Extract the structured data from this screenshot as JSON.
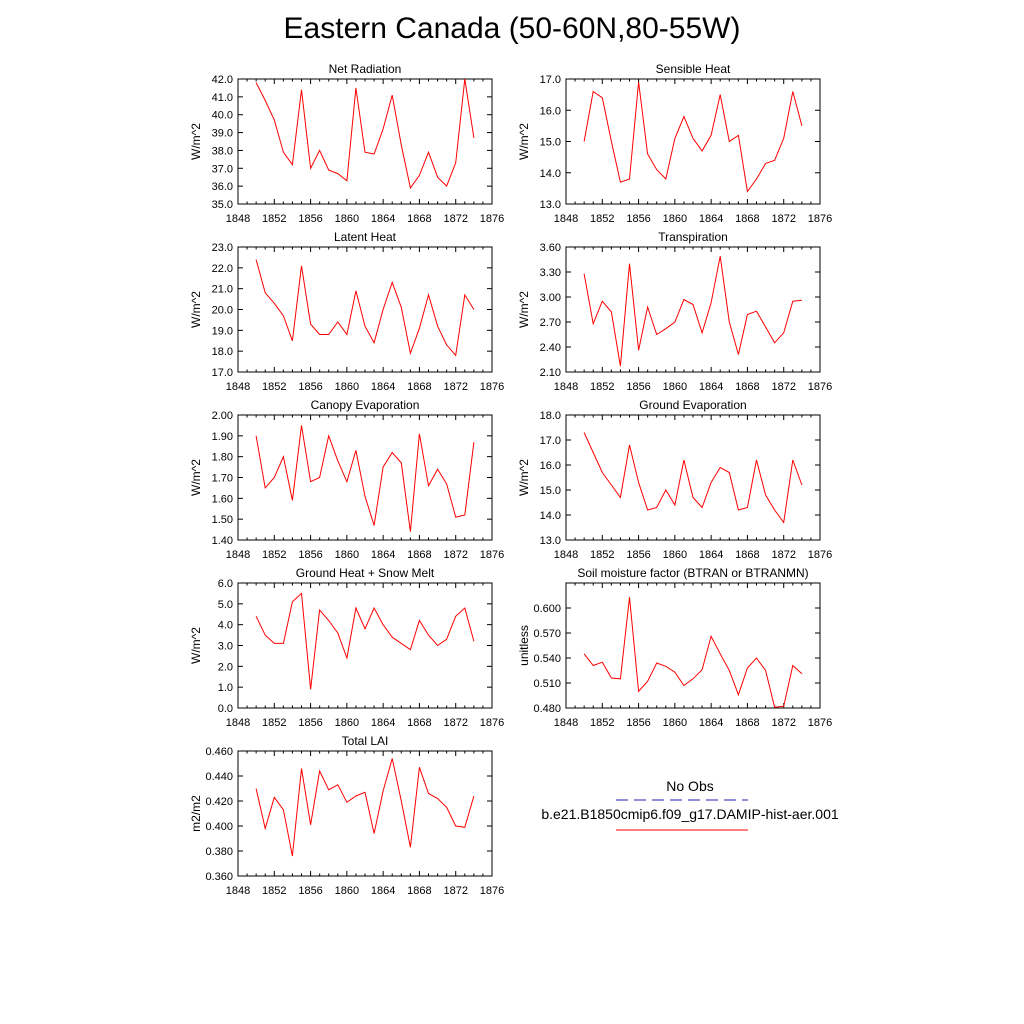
{
  "title": "Eastern Canada (50-60N,80-55W)",
  "colors": {
    "model_line": "#ff0000",
    "obs_line": "#1b1baf",
    "axis": "#000000"
  },
  "legend": {
    "obs_label": "No Obs",
    "model_label": "b.e21.B1850cmip6.f09_g17.DAMIP-hist-aer.001"
  },
  "chart_data": [
    {
      "type": "line",
      "title": "Net Radiation",
      "ylabel": "W/m^2",
      "xlim": [
        1848,
        1876
      ],
      "ylim": [
        35.0,
        42.0
      ],
      "xticks": [
        "1848",
        "1852",
        "1856",
        "1860",
        "1864",
        "1868",
        "1872",
        "1876"
      ],
      "yticks": [
        "35.0",
        "36.0",
        "37.0",
        "38.0",
        "39.0",
        "40.0",
        "41.0",
        "42.0"
      ],
      "x": [
        1850,
        1851,
        1852,
        1853,
        1854,
        1855,
        1856,
        1857,
        1858,
        1859,
        1860,
        1861,
        1862,
        1863,
        1864,
        1865,
        1866,
        1867,
        1868,
        1869,
        1870,
        1871,
        1872,
        1873,
        1874
      ],
      "series": [
        {
          "values": [
            41.8,
            40.8,
            39.7,
            37.9,
            37.2,
            41.4,
            37.0,
            38.0,
            36.9,
            36.7,
            36.3,
            41.5,
            37.9,
            37.8,
            39.2,
            41.1,
            38.3,
            35.9,
            36.6,
            37.9,
            36.5,
            36.0,
            37.3,
            42.0,
            38.7
          ]
        }
      ]
    },
    {
      "type": "line",
      "title": "Sensible Heat",
      "ylabel": "W/m^2",
      "xlim": [
        1848,
        1876
      ],
      "ylim": [
        13.0,
        17.0
      ],
      "xticks": [
        "1848",
        "1852",
        "1856",
        "1860",
        "1864",
        "1868",
        "1872",
        "1876"
      ],
      "yticks": [
        "13.0",
        "14.0",
        "15.0",
        "16.0",
        "17.0"
      ],
      "x": [
        1850,
        1851,
        1852,
        1853,
        1854,
        1855,
        1856,
        1857,
        1858,
        1859,
        1860,
        1861,
        1862,
        1863,
        1864,
        1865,
        1866,
        1867,
        1868,
        1869,
        1870,
        1871,
        1872,
        1873,
        1874
      ],
      "series": [
        {
          "values": [
            15.0,
            16.6,
            16.4,
            15.0,
            13.7,
            13.8,
            16.9,
            14.6,
            14.1,
            13.8,
            15.1,
            15.8,
            15.1,
            14.7,
            15.2,
            16.5,
            15.0,
            15.2,
            13.4,
            13.8,
            14.3,
            14.4,
            15.1,
            16.6,
            15.5
          ]
        }
      ]
    },
    {
      "type": "line",
      "title": "Latent Heat",
      "ylabel": "W/m^2",
      "xlim": [
        1848,
        1876
      ],
      "ylim": [
        17.0,
        23.0
      ],
      "xticks": [
        "1848",
        "1852",
        "1856",
        "1860",
        "1864",
        "1868",
        "1872",
        "1876"
      ],
      "yticks": [
        "17.0",
        "18.0",
        "19.0",
        "20.0",
        "21.0",
        "22.0",
        "23.0"
      ],
      "x": [
        1850,
        1851,
        1852,
        1853,
        1854,
        1855,
        1856,
        1857,
        1858,
        1859,
        1860,
        1861,
        1862,
        1863,
        1864,
        1865,
        1866,
        1867,
        1868,
        1869,
        1870,
        1871,
        1872,
        1873,
        1874
      ],
      "series": [
        {
          "values": [
            22.4,
            20.8,
            20.3,
            19.7,
            18.5,
            22.1,
            19.3,
            18.8,
            18.8,
            19.4,
            18.8,
            20.9,
            19.2,
            18.4,
            20.0,
            21.3,
            20.1,
            17.9,
            19.1,
            20.7,
            19.2,
            18.3,
            17.8,
            20.7,
            20.0
          ]
        }
      ]
    },
    {
      "type": "line",
      "title": "Transpiration",
      "ylabel": "W/m^2",
      "xlim": [
        1848,
        1876
      ],
      "ylim": [
        2.1,
        3.6
      ],
      "xticks": [
        "1848",
        "1852",
        "1856",
        "1860",
        "1864",
        "1868",
        "1872",
        "1876"
      ],
      "yticks": [
        "2.10",
        "2.40",
        "2.70",
        "3.00",
        "3.30",
        "3.60"
      ],
      "x": [
        1850,
        1851,
        1852,
        1853,
        1854,
        1855,
        1856,
        1857,
        1858,
        1859,
        1860,
        1861,
        1862,
        1863,
        1864,
        1865,
        1866,
        1867,
        1868,
        1869,
        1870,
        1871,
        1872,
        1873,
        1874
      ],
      "series": [
        {
          "values": [
            3.28,
            2.68,
            2.95,
            2.82,
            2.17,
            3.4,
            2.36,
            2.88,
            2.55,
            2.62,
            2.7,
            2.97,
            2.91,
            2.57,
            2.93,
            3.49,
            2.7,
            2.31,
            2.79,
            2.83,
            2.64,
            2.45,
            2.57,
            2.95,
            2.96
          ]
        }
      ]
    },
    {
      "type": "line",
      "title": "Canopy Evaporation",
      "ylabel": "W/m^2",
      "xlim": [
        1848,
        1876
      ],
      "ylim": [
        1.4,
        2.0
      ],
      "xticks": [
        "1848",
        "1852",
        "1856",
        "1860",
        "1864",
        "1868",
        "1872",
        "1876"
      ],
      "yticks": [
        "1.40",
        "1.50",
        "1.60",
        "1.70",
        "1.80",
        "1.90",
        "2.00"
      ],
      "x": [
        1850,
        1851,
        1852,
        1853,
        1854,
        1855,
        1856,
        1857,
        1858,
        1859,
        1860,
        1861,
        1862,
        1863,
        1864,
        1865,
        1866,
        1867,
        1868,
        1869,
        1870,
        1871,
        1872,
        1873,
        1874
      ],
      "series": [
        {
          "values": [
            1.9,
            1.65,
            1.7,
            1.8,
            1.59,
            1.95,
            1.68,
            1.7,
            1.9,
            1.78,
            1.68,
            1.83,
            1.61,
            1.47,
            1.75,
            1.82,
            1.77,
            1.44,
            1.91,
            1.66,
            1.74,
            1.67,
            1.51,
            1.52,
            1.87
          ]
        }
      ]
    },
    {
      "type": "line",
      "title": "Ground Evaporation",
      "ylabel": "W/m^2",
      "xlim": [
        1848,
        1876
      ],
      "ylim": [
        13.0,
        18.0
      ],
      "xticks": [
        "1848",
        "1852",
        "1856",
        "1860",
        "1864",
        "1868",
        "1872",
        "1876"
      ],
      "yticks": [
        "13.0",
        "14.0",
        "15.0",
        "16.0",
        "17.0",
        "18.0"
      ],
      "x": [
        1850,
        1851,
        1852,
        1853,
        1854,
        1855,
        1856,
        1857,
        1858,
        1859,
        1860,
        1861,
        1862,
        1863,
        1864,
        1865,
        1866,
        1867,
        1868,
        1869,
        1870,
        1871,
        1872,
        1873,
        1874
      ],
      "series": [
        {
          "values": [
            17.3,
            16.5,
            15.7,
            15.2,
            14.7,
            16.8,
            15.3,
            14.2,
            14.3,
            15.0,
            14.4,
            16.2,
            14.7,
            14.3,
            15.3,
            15.9,
            15.7,
            14.2,
            14.3,
            16.2,
            14.8,
            14.2,
            13.7,
            16.2,
            15.2
          ]
        }
      ]
    },
    {
      "type": "line",
      "title": "Ground Heat + Snow Melt",
      "ylabel": "W/m^2",
      "xlim": [
        1848,
        1876
      ],
      "ylim": [
        0.0,
        6.0
      ],
      "xticks": [
        "1848",
        "1852",
        "1856",
        "1860",
        "1864",
        "1868",
        "1872",
        "1876"
      ],
      "yticks": [
        "0.0",
        "1.0",
        "2.0",
        "3.0",
        "4.0",
        "5.0",
        "6.0"
      ],
      "x": [
        1850,
        1851,
        1852,
        1853,
        1854,
        1855,
        1856,
        1857,
        1858,
        1859,
        1860,
        1861,
        1862,
        1863,
        1864,
        1865,
        1866,
        1867,
        1868,
        1869,
        1870,
        1871,
        1872,
        1873,
        1874
      ],
      "series": [
        {
          "values": [
            4.4,
            3.5,
            3.1,
            3.1,
            5.1,
            5.5,
            0.9,
            4.7,
            4.2,
            3.6,
            2.4,
            4.8,
            3.8,
            4.8,
            4.0,
            3.4,
            3.1,
            2.8,
            4.2,
            3.5,
            3.0,
            3.3,
            4.4,
            4.8,
            3.2
          ]
        }
      ]
    },
    {
      "type": "line",
      "title": "Soil moisture factor (BTRAN or BTRANMN)",
      "ylabel": "unitless",
      "xlim": [
        1848,
        1876
      ],
      "ylim": [
        0.48,
        0.63
      ],
      "xticks": [
        "1848",
        "1852",
        "1856",
        "1860",
        "1864",
        "1868",
        "1872",
        "1876"
      ],
      "yticks": [
        "0.480",
        "0.510",
        "0.540",
        "0.570",
        "0.600"
      ],
      "x": [
        1850,
        1851,
        1852,
        1853,
        1854,
        1855,
        1856,
        1857,
        1858,
        1859,
        1860,
        1861,
        1862,
        1863,
        1864,
        1865,
        1866,
        1867,
        1868,
        1869,
        1870,
        1871,
        1872,
        1873,
        1874
      ],
      "series": [
        {
          "values": [
            0.545,
            0.531,
            0.535,
            0.516,
            0.515,
            0.613,
            0.5,
            0.512,
            0.534,
            0.53,
            0.523,
            0.507,
            0.515,
            0.526,
            0.566,
            0.545,
            0.525,
            0.496,
            0.528,
            0.54,
            0.525,
            0.481,
            0.482,
            0.531,
            0.521
          ]
        }
      ]
    },
    {
      "type": "line",
      "title": "Total LAI",
      "ylabel": "m2/m2",
      "xlim": [
        1848,
        1876
      ],
      "ylim": [
        0.36,
        0.46
      ],
      "xticks": [
        "1848",
        "1852",
        "1856",
        "1860",
        "1864",
        "1868",
        "1872",
        "1876"
      ],
      "yticks": [
        "0.360",
        "0.380",
        "0.400",
        "0.420",
        "0.440",
        "0.460"
      ],
      "x": [
        1850,
        1851,
        1852,
        1853,
        1854,
        1855,
        1856,
        1857,
        1858,
        1859,
        1860,
        1861,
        1862,
        1863,
        1864,
        1865,
        1866,
        1867,
        1868,
        1869,
        1870,
        1871,
        1872,
        1873,
        1874
      ],
      "series": [
        {
          "values": [
            0.43,
            0.398,
            0.423,
            0.413,
            0.376,
            0.446,
            0.401,
            0.444,
            0.429,
            0.433,
            0.419,
            0.424,
            0.427,
            0.394,
            0.428,
            0.454,
            0.42,
            0.383,
            0.447,
            0.426,
            0.422,
            0.415,
            0.4,
            0.399,
            0.424
          ]
        }
      ]
    }
  ]
}
